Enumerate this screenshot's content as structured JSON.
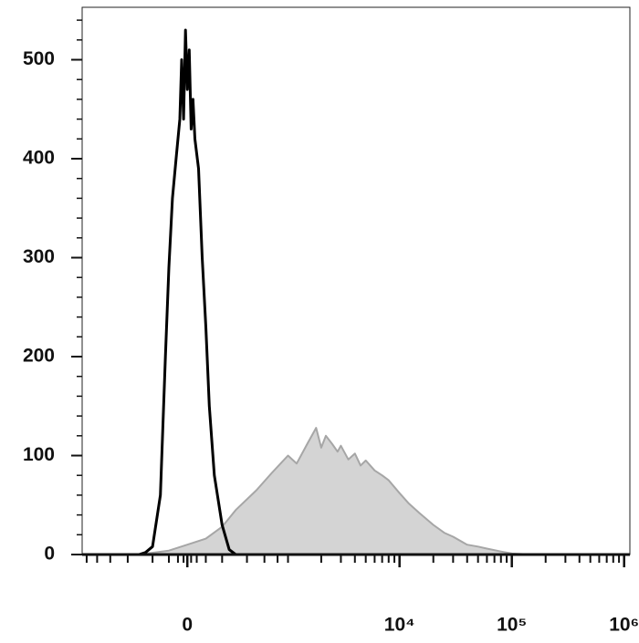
{
  "chart_data": {
    "type": "line",
    "xscale": "biexponential",
    "xlim": [
      -1100,
      1125000
    ],
    "xticks": [
      {
        "value": 0,
        "label": "0"
      },
      {
        "value": 10000,
        "label": "10⁴"
      },
      {
        "value": 100000,
        "label": "10⁵"
      },
      {
        "value": 1000000,
        "label": "10⁶"
      }
    ],
    "xminorticks": [
      -1000,
      -800,
      -600,
      -400,
      -200,
      -100,
      -50,
      -20,
      20,
      50,
      100,
      200,
      400,
      600,
      800,
      1000,
      2000,
      3000,
      4000,
      5000,
      6000,
      7000,
      8000,
      9000,
      20000,
      30000,
      40000,
      50000,
      60000,
      70000,
      80000,
      90000,
      200000,
      300000,
      400000,
      500000,
      600000,
      700000,
      800000,
      900000
    ],
    "ylim": [
      0,
      553
    ],
    "yticks": [
      0,
      100,
      200,
      300,
      400,
      500
    ],
    "yminorticks": [
      20,
      40,
      60,
      80,
      120,
      140,
      160,
      180,
      220,
      240,
      260,
      280,
      320,
      340,
      360,
      380,
      420,
      440,
      460,
      480,
      520,
      540
    ],
    "series": [
      {
        "color": "#a6a6a6",
        "fill": "#d4d4d4",
        "x": [
          -300,
          -100,
          0,
          100,
          200,
          300,
          500,
          700,
          1000,
          1200,
          1500,
          1800,
          2000,
          2200,
          2500,
          2800,
          3000,
          3500,
          4000,
          4500,
          5000,
          6000,
          7000,
          8000,
          10000,
          12000,
          15000,
          20000,
          25000,
          30000,
          40000,
          50000,
          60000,
          80000,
          100000,
          150000
        ],
        "values": [
          0,
          4,
          10,
          16,
          28,
          45,
          65,
          82,
          100,
          92,
          112,
          128,
          108,
          120,
          112,
          104,
          110,
          96,
          102,
          90,
          95,
          85,
          80,
          75,
          62,
          52,
          42,
          30,
          22,
          18,
          10,
          8,
          6,
          3,
          1,
          0
        ]
      },
      {
        "color": "#000000",
        "x": [
          -1000,
          -400,
          -300,
          -250,
          -200,
          -150,
          -120,
          -100,
          -80,
          -60,
          -40,
          -30,
          -20,
          -10,
          0,
          10,
          20,
          30,
          40,
          60,
          80,
          100,
          120,
          150,
          200,
          250,
          300,
          600,
          1000000
        ],
        "values": [
          0,
          0,
          0,
          2,
          8,
          60,
          200,
          290,
          360,
          400,
          440,
          500,
          440,
          530,
          470,
          510,
          430,
          460,
          420,
          390,
          300,
          230,
          150,
          80,
          30,
          5,
          0,
          0,
          0
        ]
      }
    ]
  }
}
